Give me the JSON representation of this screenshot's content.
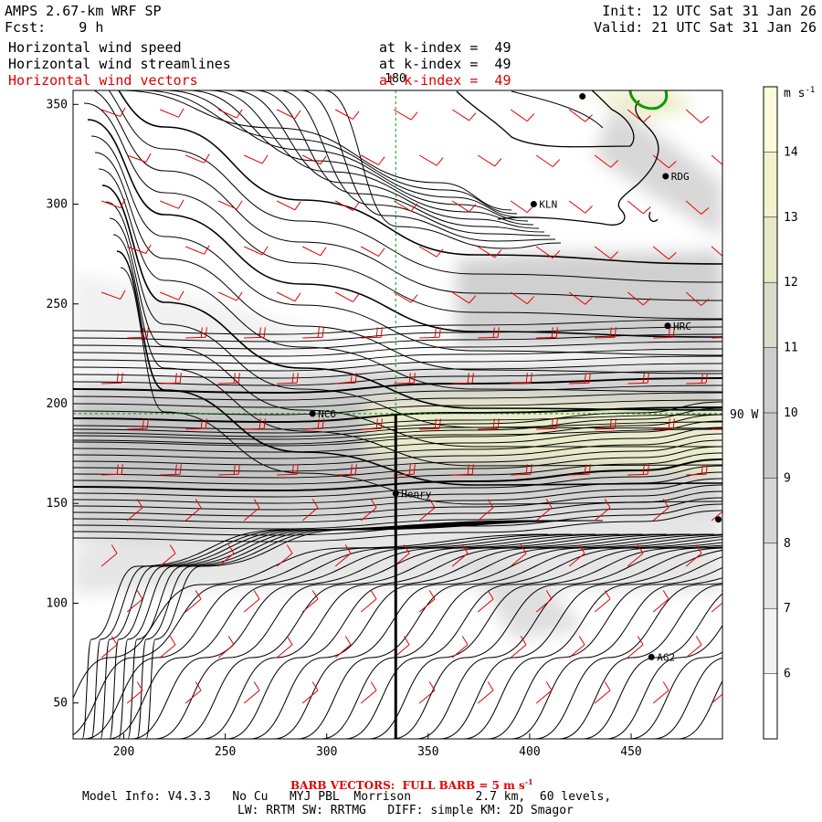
{
  "header": {
    "title": "AMPS 2.67-km WRF SP",
    "fcst": "Fcst:    9 h",
    "init": "Init: 12 UTC Sat 31 Jan 26",
    "valid": "Valid: 21 UTC Sat 31 Jan 26",
    "fields": [
      {
        "name": "Horizontal wind speed",
        "level": "at k-index =  49",
        "color": "#000000"
      },
      {
        "name": "Horizontal wind streamlines",
        "level": "at k-index =  49",
        "color": "#000000"
      },
      {
        "name": "Horizontal wind vectors",
        "level": "at k-index =  49",
        "color": "#e00000"
      }
    ]
  },
  "map": {
    "x_ticks": [
      "200",
      "250",
      "300",
      "350",
      "400",
      "450"
    ],
    "y_ticks": [
      "350",
      "300",
      "250",
      "200",
      "150",
      "100",
      "50"
    ],
    "x_range": [
      175,
      495
    ],
    "y_range": [
      32,
      357
    ],
    "meridian_label": "180",
    "parallel_label": "90 W",
    "cross_section_x": 334,
    "stations": [
      {
        "name": "NCO",
        "x": 293,
        "y": 195
      },
      {
        "name": "Henry",
        "x": 334,
        "y": 155
      },
      {
        "name": "KLN",
        "x": 402,
        "y": 300
      },
      {
        "name": "RDG",
        "x": 467,
        "y": 314
      },
      {
        "name": "HRC",
        "x": 468,
        "y": 239
      },
      {
        "name": "AG2",
        "x": 460,
        "y": 73
      },
      {
        "name": "",
        "x": 493,
        "y": 142
      },
      {
        "name": "",
        "x": 426,
        "y": 354
      }
    ]
  },
  "colorbar": {
    "unit": "m s",
    "unit_exp": "-1",
    "ticks": [
      "14",
      "13",
      "12",
      "11",
      "10",
      "9",
      "8",
      "7",
      "6"
    ],
    "range": [
      5,
      15
    ],
    "colors": [
      "#ffffff",
      "#f2f2f2",
      "#e4e4e4",
      "#d6d6d6",
      "#c9c9c9",
      "#cdcdcd",
      "#dadccc",
      "#e7e9c6",
      "#f2f3cc",
      "#fbfbdb"
    ]
  },
  "footer": {
    "barb_prefix": "BARB VECTORS:  FULL BARB = 5 m s",
    "barb_exp": "-1",
    "model_line": "Model Info: V4.3.3   No Cu   MYJ PBL  Morrison         2.7 km,  60 levels,",
    "physics_line": "LW: RRTM SW: RRTMG   DIFF: simple KM: 2D Smagor"
  }
}
